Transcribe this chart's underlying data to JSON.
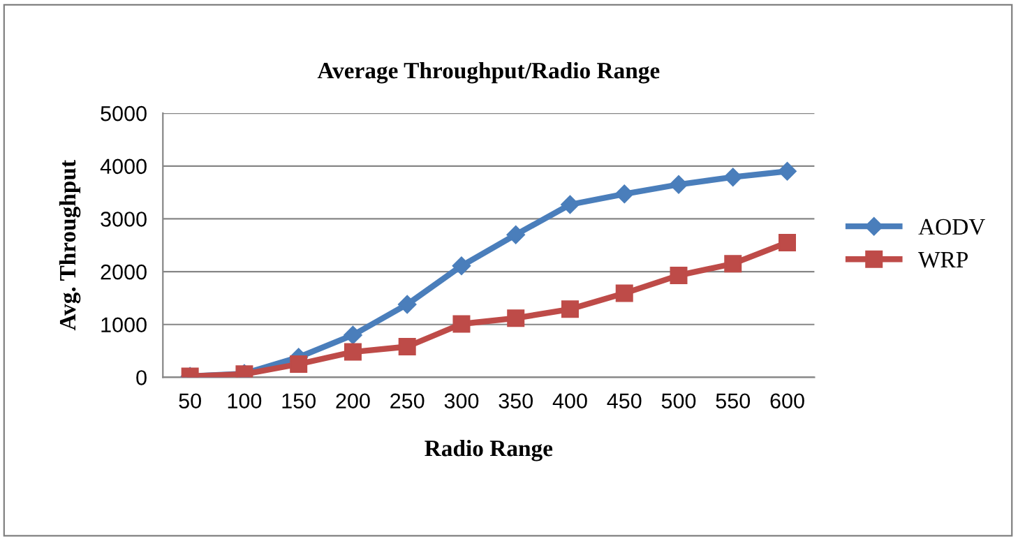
{
  "chart_data": {
    "type": "line",
    "title": "Average Throughput/Radio Range",
    "xlabel": "Radio Range",
    "ylabel": "Avg. Throughput",
    "categories": [
      "50",
      "100",
      "150",
      "200",
      "250",
      "300",
      "350",
      "400",
      "450",
      "500",
      "550",
      "600"
    ],
    "series": [
      {
        "name": "AODV",
        "color": "#4a7ebb",
        "marker": "diamond",
        "values": [
          20,
          70,
          380,
          800,
          1380,
          2110,
          2700,
          3270,
          3470,
          3650,
          3790,
          3900
        ]
      },
      {
        "name": "WRP",
        "color": "#be4b48",
        "marker": "square",
        "values": [
          20,
          60,
          250,
          480,
          580,
          1010,
          1120,
          1290,
          1590,
          1930,
          2150,
          2550
        ]
      }
    ],
    "ylim": [
      0,
      5000
    ],
    "yticks": [
      0,
      1000,
      2000,
      3000,
      4000,
      5000
    ],
    "grid": "y",
    "legend": "right",
    "line_style": "solid"
  }
}
